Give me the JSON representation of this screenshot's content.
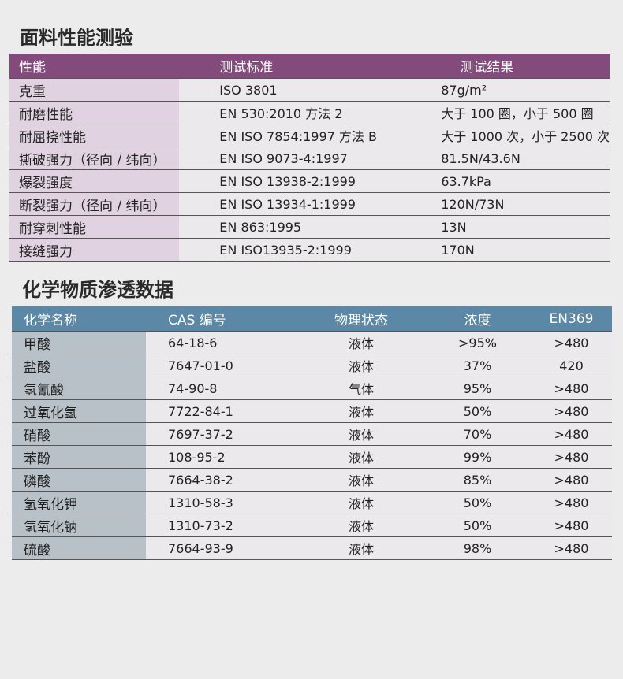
{
  "section1": {
    "title": "面料性能测验",
    "headers": [
      "性能",
      "测试标准",
      "测试结果"
    ],
    "rows": [
      [
        "克重",
        "ISO 3801",
        "87g/m²"
      ],
      [
        "耐磨性能",
        "EN 530:2010 方法 2",
        "大于 100 圈，小于 500 圈"
      ],
      [
        "耐屈挠性能",
        "EN ISO 7854:1997 方法 B",
        "大于 1000 次，小于 2500 次"
      ],
      [
        "撕破强力（径向 / 纬向）",
        "EN ISO 9073-4:1997",
        "81.5N/43.6N"
      ],
      [
        "爆裂强度",
        "EN ISO 13938-2:1999",
        "63.7kPa"
      ],
      [
        "断裂强力（径向 / 纬向）",
        "EN ISO 13934-1:1999",
        "120N/73N"
      ],
      [
        "耐穿刺性能",
        "EN 863:1995",
        "13N"
      ],
      [
        "接缝强力",
        "EN ISO13935-2:1999",
        "170N"
      ]
    ]
  },
  "section2": {
    "title": "化学物质渗透数据",
    "headers": [
      "化学名称",
      "CAS 编号",
      "物理状态",
      "浓度",
      "EN369"
    ],
    "rows": [
      [
        "甲酸",
        "64-18-6",
        "液体",
        ">95%",
        ">480"
      ],
      [
        "盐酸",
        "7647-01-0",
        "液体",
        "37%",
        "420"
      ],
      [
        "氢氰酸",
        "74-90-8",
        "气体",
        "95%",
        ">480"
      ],
      [
        "过氧化氢",
        "7722-84-1",
        "液体",
        "50%",
        ">480"
      ],
      [
        "硝酸",
        "7697-37-2",
        "液体",
        "70%",
        ">480"
      ],
      [
        "苯酚",
        "108-95-2",
        "液体",
        "99%",
        ">480"
      ],
      [
        "磷酸",
        "7664-38-2",
        "液体",
        "85%",
        ">480"
      ],
      [
        "氢氧化钾",
        "1310-58-3",
        "液体",
        "50%",
        ">480"
      ],
      [
        "氢氧化钠",
        "1310-73-2",
        "液体",
        "50%",
        ">480"
      ],
      [
        "硫酸",
        "7664-93-9",
        "液体",
        "98%",
        ">480"
      ]
    ]
  },
  "colors": {
    "purple_header": "#834b7c",
    "blue_header": "#5a88a6"
  }
}
